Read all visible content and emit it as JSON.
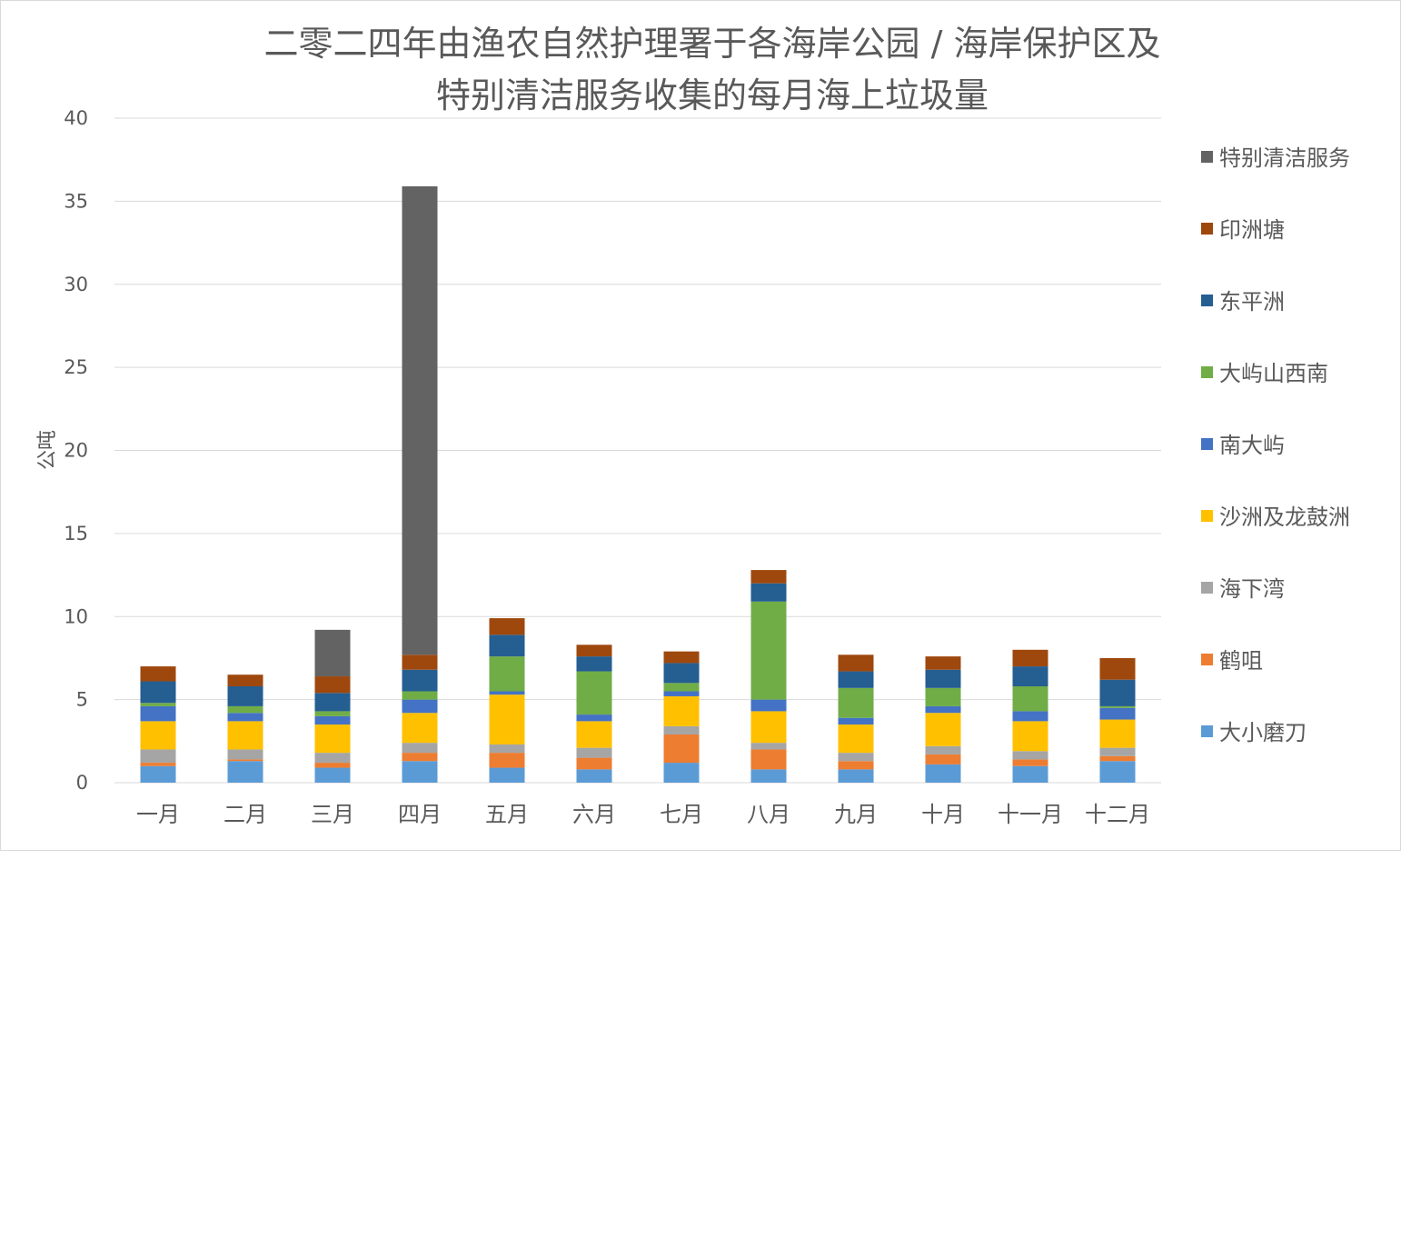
{
  "chart_data": {
    "type": "bar",
    "stacked": true,
    "title": [
      "二零二四年由渔农自然护理署于各海岸公园 / 海岸保护区及",
      "特别清洁服务收集的每月海上垃圾量"
    ],
    "ylabel": "公吨",
    "xlabel": "",
    "ylim": [
      0,
      40
    ],
    "yticks": [
      "0",
      "5",
      "10",
      "15",
      "20",
      "25",
      "30",
      "35",
      "40"
    ],
    "grid": true,
    "legend_position": "right",
    "categories": [
      "一月",
      "二月",
      "三月",
      "四月",
      "五月",
      "六月",
      "七月",
      "八月",
      "九月",
      "十月",
      "十一月",
      "十二月"
    ],
    "series": [
      {
        "name": "大小磨刀",
        "color": "#5b9bd5",
        "values": [
          1.0,
          1.3,
          0.9,
          1.3,
          0.9,
          0.8,
          1.2,
          0.8,
          0.8,
          1.1,
          1.0,
          1.3
        ]
      },
      {
        "name": "鹤咀",
        "color": "#ed7d31",
        "values": [
          0.2,
          0.1,
          0.3,
          0.5,
          0.9,
          0.7,
          1.7,
          1.2,
          0.5,
          0.6,
          0.4,
          0.3
        ]
      },
      {
        "name": "海下湾",
        "color": "#a5a5a5",
        "values": [
          0.8,
          0.6,
          0.6,
          0.6,
          0.5,
          0.6,
          0.5,
          0.4,
          0.5,
          0.5,
          0.5,
          0.5
        ]
      },
      {
        "name": "沙洲及龙鼓洲",
        "color": "#ffc000",
        "values": [
          1.7,
          1.7,
          1.7,
          1.8,
          3.0,
          1.6,
          1.8,
          1.9,
          1.7,
          2.0,
          1.8,
          1.7
        ]
      },
      {
        "name": "南大屿",
        "color": "#4472c4",
        "values": [
          0.9,
          0.5,
          0.5,
          0.8,
          0.2,
          0.4,
          0.3,
          0.7,
          0.4,
          0.4,
          0.6,
          0.7
        ]
      },
      {
        "name": "大屿山西南",
        "color": "#70ad47",
        "values": [
          0.2,
          0.4,
          0.3,
          0.5,
          2.1,
          2.6,
          0.5,
          5.9,
          1.8,
          1.1,
          1.5,
          0.1
        ]
      },
      {
        "name": "东平洲",
        "color": "#255e91",
        "values": [
          1.3,
          1.2,
          1.1,
          1.3,
          1.3,
          0.9,
          1.2,
          1.1,
          1.0,
          1.1,
          1.2,
          1.6
        ]
      },
      {
        "name": "印洲塘",
        "color": "#9e480e",
        "values": [
          0.9,
          0.7,
          1.0,
          0.9,
          1.0,
          0.7,
          0.7,
          0.8,
          1.0,
          0.8,
          1.0,
          1.3
        ]
      },
      {
        "name": "特别清洁服务",
        "color": "#636363",
        "values": [
          0,
          0,
          2.8,
          28.2,
          0,
          0,
          0,
          0,
          0,
          0,
          0,
          0
        ]
      }
    ]
  }
}
